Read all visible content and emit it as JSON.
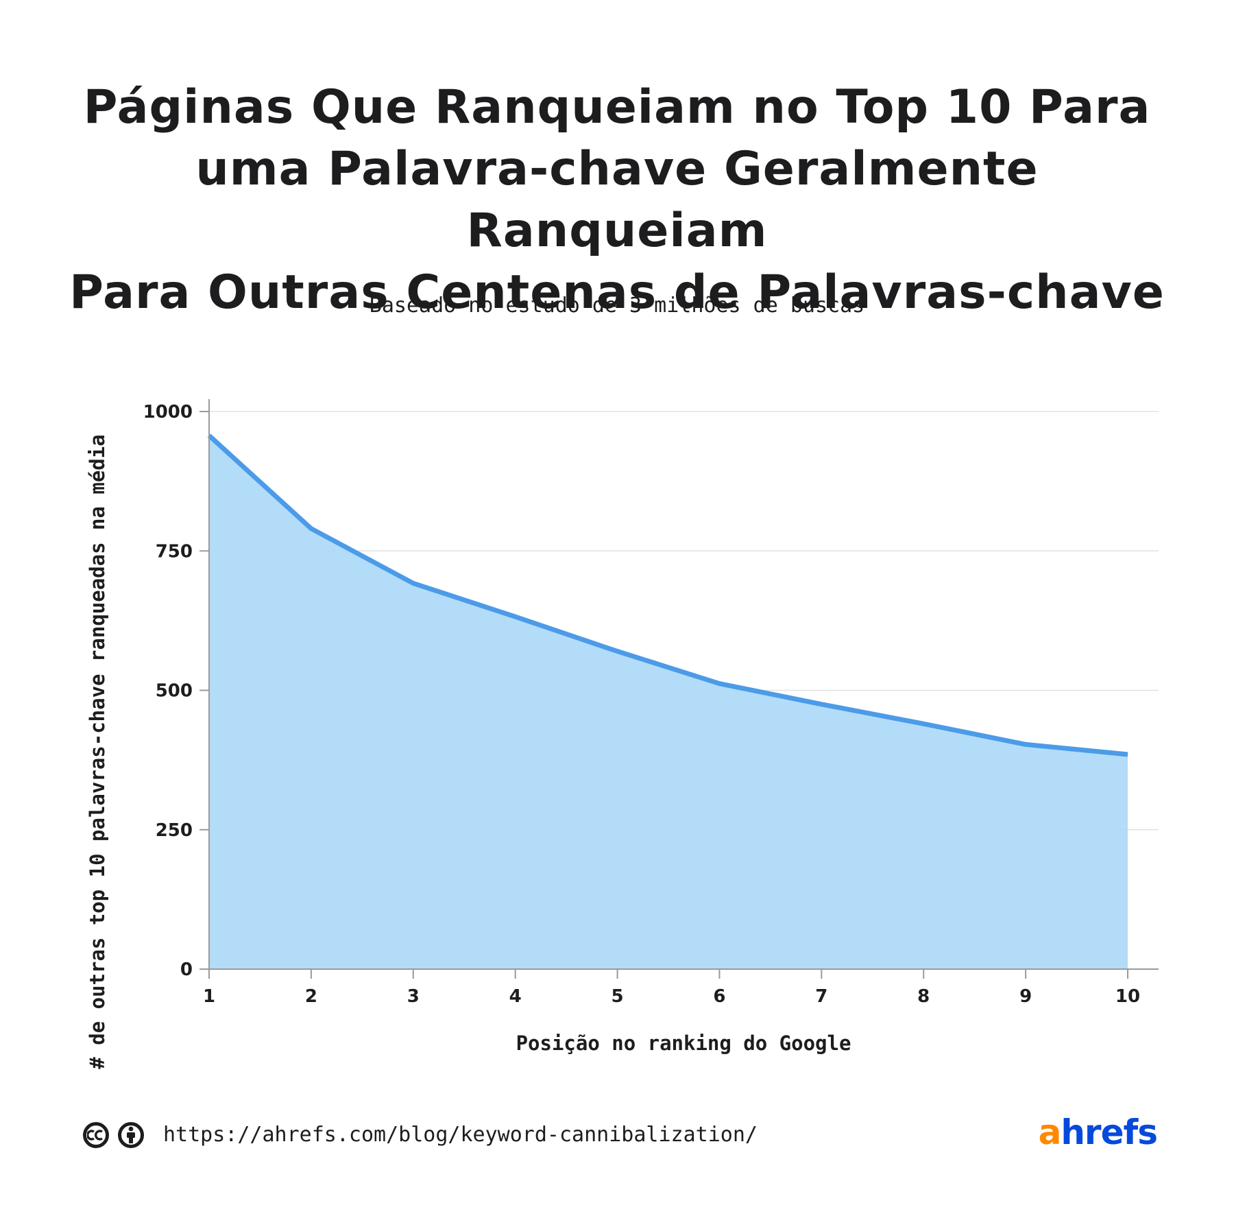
{
  "header": {
    "title_lines": [
      "Páginas Que Ranqueiam no Top 10 Para",
      "uma Palavra-chave Geralmente Ranqueiam",
      "Para Outras Centenas de Palavras-chave"
    ],
    "subtitle": "Baseado no estudo de 3 milhões de buscas"
  },
  "chart_data": {
    "type": "area",
    "x": [
      1,
      2,
      3,
      4,
      5,
      6,
      7,
      8,
      9,
      10
    ],
    "values": [
      957,
      790,
      692,
      632,
      570,
      512,
      475,
      440,
      403,
      385
    ],
    "xlabel": "Posição no ranking do Google",
    "ylabel": "# de outras top 10 palavras-chave ranqueadas na média",
    "ylim": [
      0,
      1000
    ],
    "yticks": [
      0,
      250,
      500,
      750,
      1000
    ],
    "xticks": [
      1,
      2,
      3,
      4,
      5,
      6,
      7,
      8,
      9,
      10
    ],
    "grid": true,
    "colors": {
      "line": "#4c9be8",
      "fill": "#acd9f7",
      "grid": "#e2e2e2",
      "axis": "#9a9a9a"
    }
  },
  "footer": {
    "url": "https://ahrefs.com/blog/keyword-cannibalization/",
    "license_icons": [
      "creative-commons-icon",
      "attribution-icon"
    ],
    "logo": {
      "a": "a",
      "rest": "hrefs",
      "color_a": "#ff8800",
      "color_rest": "#054ada"
    }
  }
}
